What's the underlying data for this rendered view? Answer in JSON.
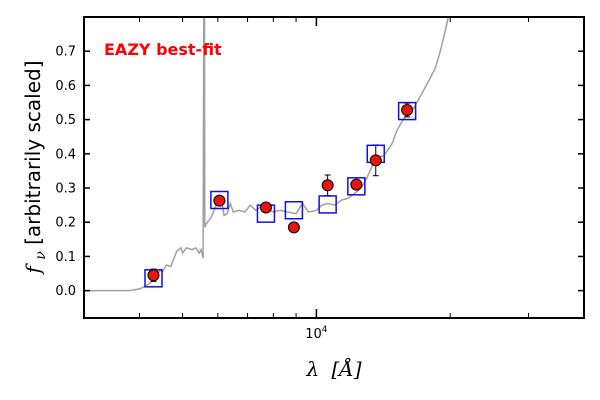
{
  "chart_data": {
    "type": "scatter",
    "title": "",
    "annotation": "EAZY best-fit",
    "annotation_color": "#ff0000",
    "xlabel": {
      "main": "λ",
      "unit": "[Å]"
    },
    "ylabel": {
      "symbol": "f",
      "sub": "ν",
      "text": " [arbitrarily scaled]"
    },
    "x_scale": "log",
    "xlim": [
      3000,
      40000
    ],
    "ylim": [
      -0.08,
      0.8
    ],
    "x_ticks": [
      {
        "value": 10000,
        "base": "10",
        "exp": "4"
      }
    ],
    "y_ticks": [
      {
        "value": 0.0,
        "label": "0.0"
      },
      {
        "value": 0.1,
        "label": "0.1"
      },
      {
        "value": 0.2,
        "label": "0.2"
      },
      {
        "value": 0.3,
        "label": "0.3"
      },
      {
        "value": 0.4,
        "label": "0.4"
      },
      {
        "value": 0.5,
        "label": "0.5"
      },
      {
        "value": 0.6,
        "label": "0.6"
      },
      {
        "value": 0.7,
        "label": "0.7"
      }
    ],
    "colors": {
      "model": "#a0a0a0",
      "photometry": "#e8140e",
      "model_flux": "#1010e0",
      "errorbar": "#000000"
    },
    "series": [
      {
        "kind": "observed",
        "points": [
          {
            "x": 4300,
            "y": 0.045,
            "err": 0.018
          },
          {
            "x": 6050,
            "y": 0.263,
            "err": 0.012
          },
          {
            "x": 7700,
            "y": 0.243,
            "err": 0.01
          },
          {
            "x": 8900,
            "y": 0.185,
            "err": 0.012
          },
          {
            "x": 10600,
            "y": 0.308,
            "err": 0.03
          },
          {
            "x": 12300,
            "y": 0.31,
            "err": 0.012
          },
          {
            "x": 13600,
            "y": 0.381,
            "err": 0.045
          },
          {
            "x": 16000,
            "y": 0.528,
            "err": 0.02
          }
        ]
      },
      {
        "kind": "model_photometry",
        "points": [
          {
            "x": 4300,
            "y": 0.036
          },
          {
            "x": 6050,
            "y": 0.265
          },
          {
            "x": 7700,
            "y": 0.225
          },
          {
            "x": 8900,
            "y": 0.235
          },
          {
            "x": 10600,
            "y": 0.252
          },
          {
            "x": 12300,
            "y": 0.305
          },
          {
            "x": 13600,
            "y": 0.4
          },
          {
            "x": 16000,
            "y": 0.525
          }
        ]
      },
      {
        "kind": "model_spectrum",
        "points": [
          [
            3000,
            0.0
          ],
          [
            3800,
            0.0
          ],
          [
            4000,
            0.005
          ],
          [
            4150,
            0.015
          ],
          [
            4300,
            0.03
          ],
          [
            4450,
            0.06
          ],
          [
            4500,
            0.055
          ],
          [
            4600,
            0.075
          ],
          [
            4700,
            0.07
          ],
          [
            4850,
            0.115
          ],
          [
            4950,
            0.125
          ],
          [
            5000,
            0.11
          ],
          [
            5100,
            0.125
          ],
          [
            5250,
            0.12
          ],
          [
            5350,
            0.125
          ],
          [
            5450,
            0.11
          ],
          [
            5500,
            0.12
          ],
          [
            5560,
            0.095
          ],
          [
            5580,
            0.8
          ],
          [
            5600,
            0.8
          ],
          [
            5610,
            0.185
          ],
          [
            5650,
            0.195
          ],
          [
            5800,
            0.215
          ],
          [
            5950,
            0.25
          ],
          [
            6100,
            0.275
          ],
          [
            6200,
            0.22
          ],
          [
            6300,
            0.225
          ],
          [
            6400,
            0.255
          ],
          [
            6500,
            0.23
          ],
          [
            6700,
            0.235
          ],
          [
            6900,
            0.23
          ],
          [
            7100,
            0.25
          ],
          [
            7300,
            0.235
          ],
          [
            7500,
            0.245
          ],
          [
            7700,
            0.24
          ],
          [
            8000,
            0.23
          ],
          [
            8300,
            0.235
          ],
          [
            8600,
            0.23
          ],
          [
            9000,
            0.225
          ],
          [
            9300,
            0.255
          ],
          [
            9600,
            0.23
          ],
          [
            10000,
            0.235
          ],
          [
            10300,
            0.25
          ],
          [
            10600,
            0.255
          ],
          [
            11000,
            0.25
          ],
          [
            11400,
            0.265
          ],
          [
            11800,
            0.27
          ],
          [
            12200,
            0.285
          ],
          [
            12600,
            0.3
          ],
          [
            13000,
            0.33
          ],
          [
            13400,
            0.37
          ],
          [
            13800,
            0.39
          ],
          [
            14200,
            0.395
          ],
          [
            14800,
            0.43
          ],
          [
            15200,
            0.47
          ],
          [
            15600,
            0.495
          ],
          [
            16000,
            0.515
          ],
          [
            16500,
            0.53
          ],
          [
            17000,
            0.56
          ],
          [
            17500,
            0.59
          ],
          [
            18000,
            0.62
          ],
          [
            18500,
            0.65
          ],
          [
            19000,
            0.7
          ],
          [
            19500,
            0.76
          ],
          [
            19800,
            0.8
          ]
        ]
      }
    ]
  }
}
